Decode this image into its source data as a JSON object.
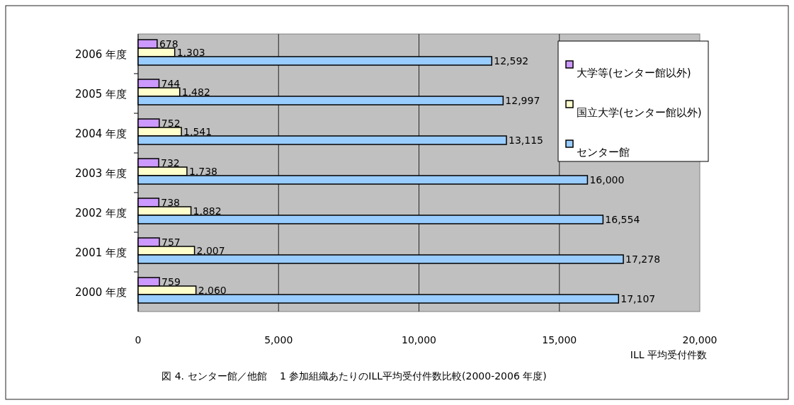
{
  "chart_data": {
    "type": "bar",
    "orientation": "horizontal",
    "title": "図 4. センター館／他館　 1 参加組織あたりのILL平均受付件数比較(2000-2006 年度)",
    "xlabel": "ILL 平均受付件数",
    "categories": [
      "2006 年度",
      "2005 年度",
      "2004 年度",
      "2003 年度",
      "2002 年度",
      "2001 年度",
      "2000 年度"
    ],
    "series": [
      {
        "name": "大学等(センター館以外)",
        "color": "#cc99ff",
        "values": [
          678,
          744,
          752,
          732,
          738,
          757,
          759
        ],
        "value_labels": [
          "678",
          "744",
          "752",
          "732",
          "738",
          "757",
          "759"
        ]
      },
      {
        "name": "国立大学(センター館以外)",
        "color": "#ffffcc",
        "values": [
          1303,
          1482,
          1541,
          1738,
          1882,
          2007,
          2060
        ],
        "value_labels": [
          "1,303",
          "1,482",
          "1,541",
          "1,738",
          "1,882",
          "2,007",
          "2,060"
        ]
      },
      {
        "name": "センター館",
        "color": "#99ccff",
        "values": [
          12592,
          12997,
          13115,
          16000,
          16554,
          17278,
          17107
        ],
        "value_labels": [
          "12,592",
          "12,997",
          "13,115",
          "16,000",
          "16,554",
          "17,278",
          "17,107"
        ]
      }
    ],
    "xlim": [
      0,
      20000
    ],
    "xticks": [
      0,
      {
        "value": 5000,
        "label": "5,000"
      },
      {
        "value": 10000,
        "label": "10,000"
      },
      {
        "value": 15000,
        "label": "15,000"
      },
      {
        "value": 20000,
        "label": "20,000"
      }
    ],
    "grid": "x",
    "legend": "top right"
  }
}
